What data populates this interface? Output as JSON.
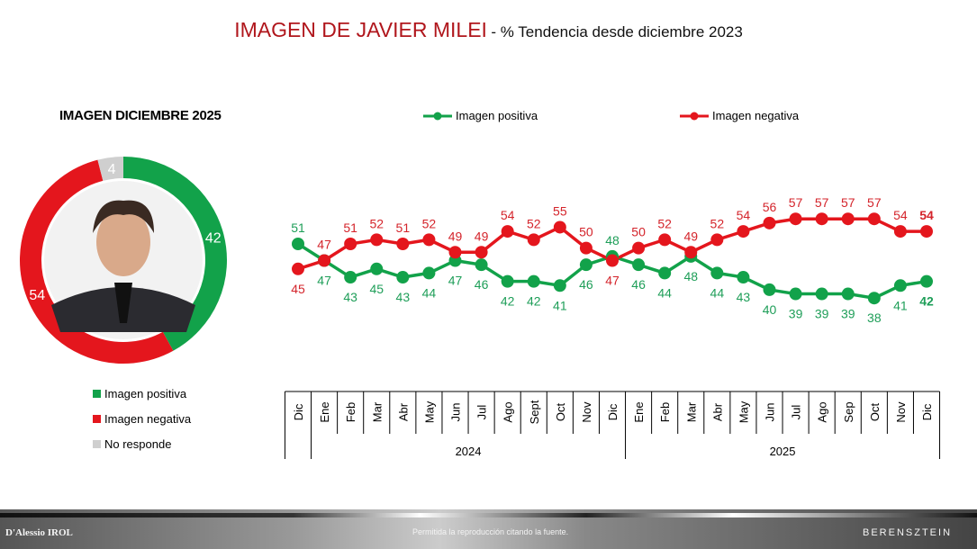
{
  "header": {
    "title": "IMAGEN DE JAVIER MILEI",
    "subtitle": "- % Tendencia desde diciembre 2023"
  },
  "colors": {
    "positive": "#12a24a",
    "negative": "#e4161d",
    "no_response": "#cfcfcf",
    "title": "#b0161c"
  },
  "footer": {
    "left_logo": "D'Alessio IROL",
    "center_text": "Permitida la reproducción citando la fuente.",
    "right_logo": "BERENSZTEIN"
  },
  "chart_data": [
    {
      "type": "pie",
      "variant": "donut",
      "title": "IMAGEN DICIEMBRE 2025",
      "slices": [
        {
          "name": "Imagen positiva",
          "value": 42
        },
        {
          "name": "Imagen negativa",
          "value": 54
        },
        {
          "name": "No responde",
          "value": 4
        }
      ],
      "legend": "bottom",
      "center_image": "photo of Javier Milei"
    },
    {
      "type": "line",
      "legend": "top",
      "categories": [
        "Dic",
        "Ene",
        "Feb",
        "Mar",
        "Abr",
        "May",
        "Jun",
        "Jul",
        "Ago",
        "Sept",
        "Oct",
        "Nov",
        "Dic",
        "Ene",
        "Feb",
        "Mar",
        "Abr",
        "May",
        "Jun",
        "Jul",
        "Ago",
        "Sep",
        "Oct",
        "Nov",
        "Dic"
      ],
      "year_groups": [
        {
          "label": "2024",
          "months": 12
        },
        {
          "label": "2025",
          "months": 12
        }
      ],
      "series": [
        {
          "name": "Imagen positiva",
          "values": [
            51,
            47,
            43,
            45,
            43,
            44,
            47,
            46,
            42,
            42,
            41,
            46,
            48,
            46,
            44,
            48,
            44,
            43,
            40,
            39,
            39,
            39,
            38,
            41,
            42
          ]
        },
        {
          "name": "Imagen negativa",
          "values": [
            45,
            47,
            51,
            52,
            51,
            52,
            49,
            49,
            54,
            52,
            55,
            50,
            47,
            50,
            52,
            49,
            52,
            54,
            56,
            57,
            57,
            57,
            57,
            54,
            54
          ]
        }
      ]
    }
  ]
}
